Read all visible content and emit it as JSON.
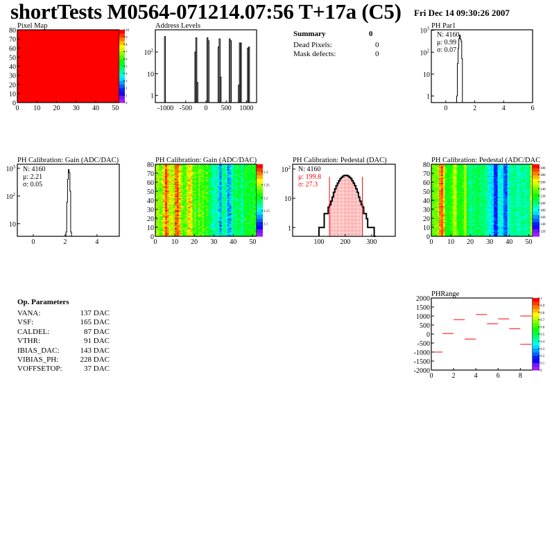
{
  "header": {
    "title": "shortTests M0564-071214.07:56 T+17a (C5)",
    "date": "Fri Dec 14 09:30:26 2007"
  },
  "summary": {
    "title": "Summary",
    "total": "0",
    "rows": [
      {
        "label": "Dead Pixels:",
        "value": "0"
      },
      {
        "label": "Mask defects:",
        "value": "0"
      }
    ]
  },
  "op_parameters": {
    "title": "Op. Parameters",
    "rows": [
      {
        "label": "VANA:",
        "value": "137 DAC"
      },
      {
        "label": "VSF:",
        "value": "165 DAC"
      },
      {
        "label": "CALDEL:",
        "value": "87 DAC"
      },
      {
        "label": "VTHR:",
        "value": "91 DAC"
      },
      {
        "label": "IBIAS_DAC:",
        "value": "143 DAC"
      },
      {
        "label": "VIBIAS_PH:",
        "value": "228 DAC"
      },
      {
        "label": "VOFFSETOP:",
        "value": "37 DAC"
      }
    ]
  },
  "palette": "rainbow (violet-blue-cyan-green-yellow-orange-red)",
  "chart_data": [
    {
      "id": "pixel-map",
      "type": "heatmap",
      "title": "Pixel Map",
      "xlim": [
        0,
        52
      ],
      "ylim": [
        0,
        80
      ],
      "zlim": [
        0,
        10
      ],
      "xticks": [
        0,
        10,
        20,
        30,
        40,
        50
      ],
      "yticks": [
        0,
        10,
        20,
        30,
        40,
        50,
        60,
        70,
        80
      ],
      "zticks": [
        0,
        1,
        2,
        3,
        4,
        5,
        6,
        7,
        8,
        9,
        10
      ],
      "uniform_value": 10
    },
    {
      "id": "address-levels",
      "type": "bar",
      "title": "Address Levels",
      "xlim": [
        -1250,
        1250
      ],
      "ylim": [
        0.47,
        1050
      ],
      "ylog": true,
      "xticks": [
        -1000,
        -500,
        0,
        500,
        1000
      ],
      "yticks": [
        "1",
        "10",
        "10^2"
      ],
      "bin_width": 25,
      "bins": [
        [
          -1025,
          510
        ],
        [
          -275,
          100
        ],
        [
          -250,
          450
        ],
        [
          -225,
          4
        ],
        [
          25,
          450
        ],
        [
          50,
          330
        ],
        [
          300,
          170
        ],
        [
          325,
          400
        ],
        [
          350,
          7
        ],
        [
          575,
          400
        ],
        [
          600,
          330
        ],
        [
          800,
          3
        ],
        [
          825,
          260
        ],
        [
          850,
          260
        ],
        [
          1025,
          150
        ],
        [
          1050,
          170
        ]
      ]
    },
    {
      "id": "ph-par1",
      "type": "histogram",
      "title": "PH Par1",
      "xlim": [
        -1,
        6
      ],
      "ylim": [
        0.5,
        1050
      ],
      "ylog": true,
      "xticks": [
        0,
        2,
        4,
        6
      ],
      "yticks": [
        "1",
        "10",
        "10^2",
        "10^3"
      ],
      "bin_width": 0.05,
      "x_start": 0.75,
      "values": [
        1,
        30,
        150,
        420,
        600,
        400,
        320,
        50,
        0
      ],
      "stats": [
        {
          "text": "N: 4160",
          "color": "#000000"
        },
        {
          "text": "μ: 0.99",
          "color": "#000000"
        },
        {
          "text": "σ: 0.07",
          "color": "#000000"
        }
      ]
    },
    {
      "id": "gain-histogram",
      "type": "histogram",
      "title": "PH Calibration: Gain (ADC/DAC)",
      "xlim": [
        -1,
        5.4
      ],
      "ylim": [
        3.5,
        1400
      ],
      "ylog": true,
      "xticks": [
        0,
        2,
        4
      ],
      "yticks": [
        "10",
        "10^2",
        "10^3"
      ],
      "bin_width": 0.05,
      "x_start": 2.05,
      "values": [
        5,
        60,
        400,
        900,
        700,
        150,
        5
      ],
      "stats": [
        {
          "text": "N: 4160",
          "color": "#000000"
        },
        {
          "text": "μ: 2.21",
          "color": "#000000"
        },
        {
          "text": "σ: 0.05",
          "color": "#000000"
        }
      ]
    },
    {
      "id": "gain-map",
      "type": "heatmap",
      "title": "PH Calibration: Gain (ADC/DAC)",
      "xlim": [
        0,
        52
      ],
      "ylim": [
        0,
        80
      ],
      "zlim": [
        2.05,
        2.33
      ],
      "xticks": [
        0,
        10,
        20,
        30,
        40,
        50
      ],
      "yticks": [
        0,
        10,
        20,
        30,
        40,
        50,
        60,
        70,
        80
      ],
      "zticks": [
        2.1,
        2.15,
        2.2,
        2.25,
        2.3
      ],
      "column_means": [
        2.24,
        2.25,
        2.23,
        2.24,
        2.28,
        2.31,
        2.29,
        2.25,
        2.26,
        2.24,
        2.3,
        2.31,
        2.28,
        2.24,
        2.22,
        2.23,
        2.25,
        2.28,
        2.27,
        2.22,
        2.23,
        2.21,
        2.24,
        2.22,
        2.23,
        2.21,
        2.22,
        2.2,
        2.19,
        2.17,
        2.16,
        2.17,
        2.15,
        2.12,
        2.17,
        2.18,
        2.16,
        2.12,
        2.13,
        2.17,
        2.19,
        2.18,
        2.2,
        2.19,
        2.17,
        2.19,
        2.21,
        2.2,
        2.2,
        2.21,
        2.2,
        2.21
      ],
      "noise": 0.02
    },
    {
      "id": "pedestal-histogram",
      "type": "histogram",
      "title": "PH Calibration: Pedestal (DAC)",
      "xlim": [
        0,
        390
      ],
      "ylim": [
        0.5,
        146
      ],
      "ylog": true,
      "xticks": [
        100,
        200,
        300
      ],
      "yticks": [
        "1",
        "10",
        "10^2"
      ],
      "bin_width": 5,
      "x_start": 100,
      "values": [
        1,
        1,
        1,
        1,
        3,
        3,
        3,
        5,
        6,
        8,
        11,
        16,
        21,
        27,
        33,
        40,
        47,
        52,
        57,
        60,
        61,
        60,
        57,
        52,
        47,
        40,
        33,
        27,
        21,
        16,
        11,
        8,
        6,
        5,
        3,
        3,
        2,
        1,
        1,
        1,
        1,
        1,
        0
      ],
      "fit_range": [
        140,
        265
      ],
      "fill_color": "#ff0000",
      "stats": [
        {
          "text": "N: 4160",
          "color": "#000000"
        },
        {
          "text": "μ: 199.8",
          "color": "#ff0000"
        },
        {
          "text": "σ: 27.3",
          "color": "#ff0000"
        }
      ]
    },
    {
      "id": "pedestal-map",
      "type": "heatmap",
      "title": "PH Calibration: Pedestal (ADC/DAC",
      "xlim": [
        0,
        52
      ],
      "ylim": [
        0,
        80
      ],
      "zlim": [
        105,
        310
      ],
      "xticks": [
        0,
        10,
        20,
        30,
        40,
        50
      ],
      "yticks": [
        0,
        10,
        20,
        30,
        40,
        50,
        60,
        70,
        80
      ],
      "zticks": [
        120,
        140,
        160,
        180,
        200,
        220,
        240,
        260,
        280,
        300
      ],
      "column_means": [
        235,
        240,
        238,
        245,
        285,
        295,
        270,
        225,
        220,
        222,
        228,
        250,
        255,
        225,
        220,
        222,
        230,
        255,
        215,
        200,
        198,
        205,
        200,
        210,
        205,
        200,
        205,
        198,
        195,
        180,
        175,
        170,
        140,
        135,
        175,
        182,
        175,
        150,
        145,
        180,
        190,
        195,
        200,
        195,
        185,
        190,
        198,
        195,
        190,
        195,
        200,
        255
      ],
      "noise": 10
    },
    {
      "id": "ph-range",
      "type": "heatmap",
      "title": "PHRange",
      "xlim": [
        0,
        9.1
      ],
      "ylim": [
        -2000,
        2000
      ],
      "zlim": [
        0,
        1
      ],
      "xticks": [
        0,
        2,
        4,
        6,
        8
      ],
      "yticks": [
        -2000,
        -1500,
        -1000,
        -500,
        0,
        500,
        1000,
        1500,
        2000
      ],
      "zticks": [
        0,
        0.1,
        0.2,
        0.3,
        0.4,
        0.5,
        0.6,
        0.7,
        0.8,
        0.9,
        1
      ],
      "segments": [
        [
          0,
          1,
          -1000
        ],
        [
          1,
          2,
          30
        ],
        [
          2,
          3,
          800
        ],
        [
          3,
          4,
          -280
        ],
        [
          4,
          5,
          1080
        ],
        [
          5,
          6,
          570
        ],
        [
          6,
          7,
          840
        ],
        [
          7,
          8,
          300
        ],
        [
          8,
          9,
          1000
        ],
        [
          8,
          9,
          -570
        ]
      ],
      "segment_color": "#ff0000"
    }
  ]
}
